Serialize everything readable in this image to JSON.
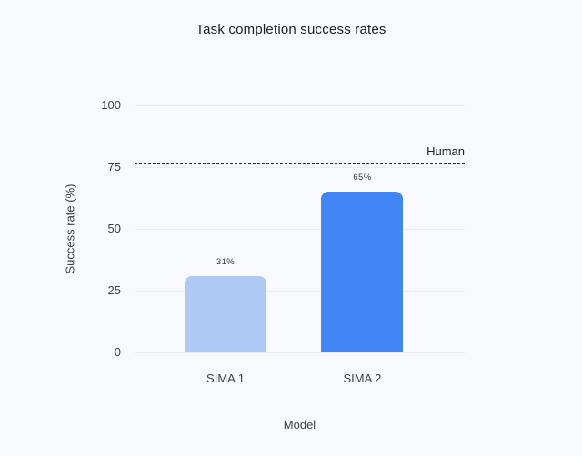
{
  "page": {
    "background_color": "#f8f9fc"
  },
  "chart_data": {
    "type": "bar",
    "title": "Task completion success rates",
    "xlabel": "Model",
    "ylabel": "Success rate (%)",
    "categories": [
      "SIMA 1",
      "SIMA 2"
    ],
    "values": [
      31,
      65
    ],
    "value_labels": [
      "31%",
      "65%"
    ],
    "bar_colors": [
      "#aec9f6",
      "#4285f4"
    ],
    "ylim": [
      0,
      100
    ],
    "yticks": [
      0,
      25,
      50,
      75,
      100
    ],
    "grid": true,
    "legend": "none",
    "reference_line": {
      "label": "Human",
      "value": 77,
      "style": "dashed",
      "color": "#2b2d30"
    }
  }
}
